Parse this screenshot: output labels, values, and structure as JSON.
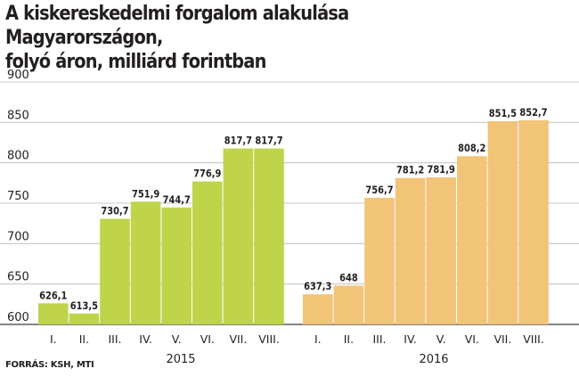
{
  "title_line1": "A kiskereskedelmi forgalom alakulása Magyarországon,",
  "title_line2": "folyó áron, milliárd forintban",
  "source": "FORRÁS: KSH, MTI",
  "chart_data": {
    "type": "bar",
    "ylim": [
      600,
      900
    ],
    "yticks": [
      600,
      650,
      700,
      750,
      800,
      850,
      900
    ],
    "ytick_labels": [
      "600",
      "650",
      "700",
      "750",
      "800",
      "850",
      "900"
    ],
    "grid": true,
    "series": [
      {
        "name": "2015",
        "color": "#bfd449",
        "categories": [
          "I.",
          "II.",
          "III.",
          "IV.",
          "V.",
          "VI.",
          "VII.",
          "VIII."
        ],
        "values": [
          626.1,
          613.5,
          730.7,
          751.9,
          744.7,
          776.9,
          817.7,
          817.7
        ],
        "labels": [
          "626,1",
          "613,5",
          "730,7",
          "751,9",
          "744,7",
          "776,9",
          "817,7",
          "817,7"
        ]
      },
      {
        "name": "2016",
        "color": "#f2c478",
        "categories": [
          "I.",
          "II.",
          "III.",
          "IV.",
          "V.",
          "VI.",
          "VII.",
          "VIII."
        ],
        "values": [
          637.3,
          648,
          756.7,
          781.2,
          781.9,
          808.2,
          851.5,
          852.7
        ],
        "labels": [
          "637,3",
          "648",
          "756,7",
          "781,2",
          "781,9",
          "808,2",
          "851,5",
          "852,7"
        ]
      }
    ]
  }
}
